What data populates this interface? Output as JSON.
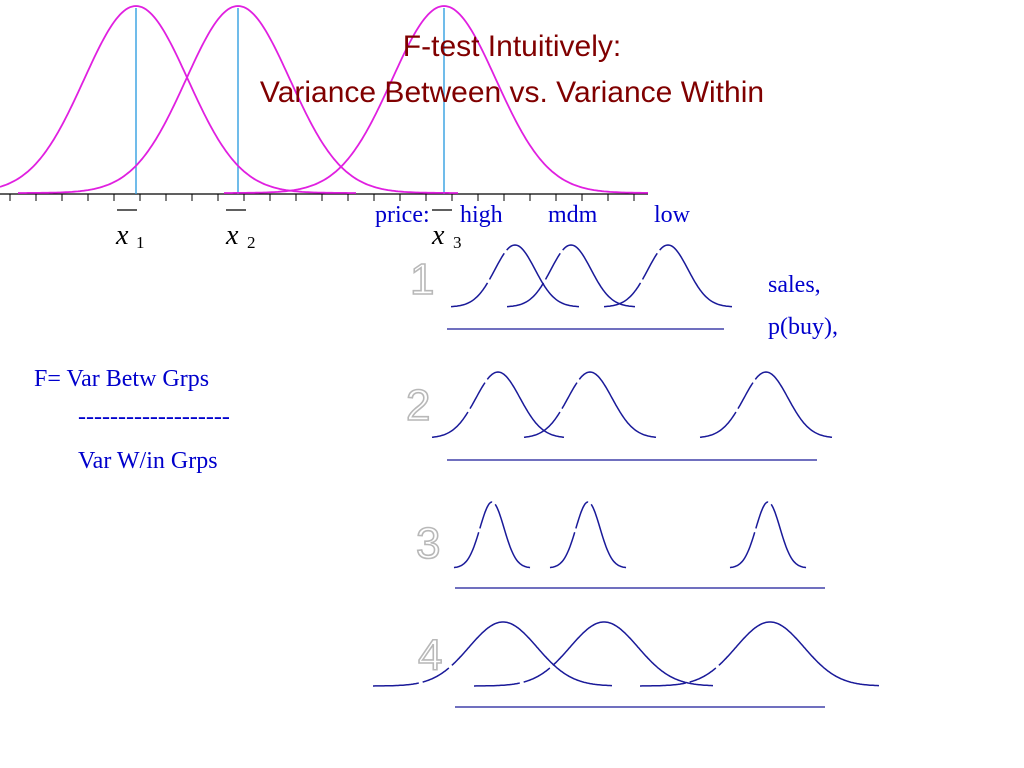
{
  "title": {
    "line1": "F-test Intuitively:",
    "line2": "Variance Between vs. Variance Within"
  },
  "means": [
    {
      "symbol": "x",
      "subscript": "1"
    },
    {
      "symbol": "x",
      "subscript": "2"
    },
    {
      "symbol": "x",
      "subscript": "3"
    }
  ],
  "price_header": {
    "prefix": "price:",
    "levels": [
      "high",
      "mdm",
      "low"
    ]
  },
  "measures": {
    "line1": "sales,",
    "line2": "p(buy),"
  },
  "formula": {
    "lhs": "F= Var Betw Grps",
    "divider": "-------------------",
    "denominator": "Var W/in Grps"
  },
  "scenarios": [
    {
      "label": "1"
    },
    {
      "label": "2"
    },
    {
      "label": "3"
    },
    {
      "label": "4"
    }
  ],
  "colors": {
    "title": "#800000",
    "text": "#0000cc",
    "top_curves": "#e020e0",
    "mean_lines": "#33a0e0",
    "scenario_curves": "#1a1a99",
    "scenario_numbers_outline": "#b8b8b8"
  }
}
